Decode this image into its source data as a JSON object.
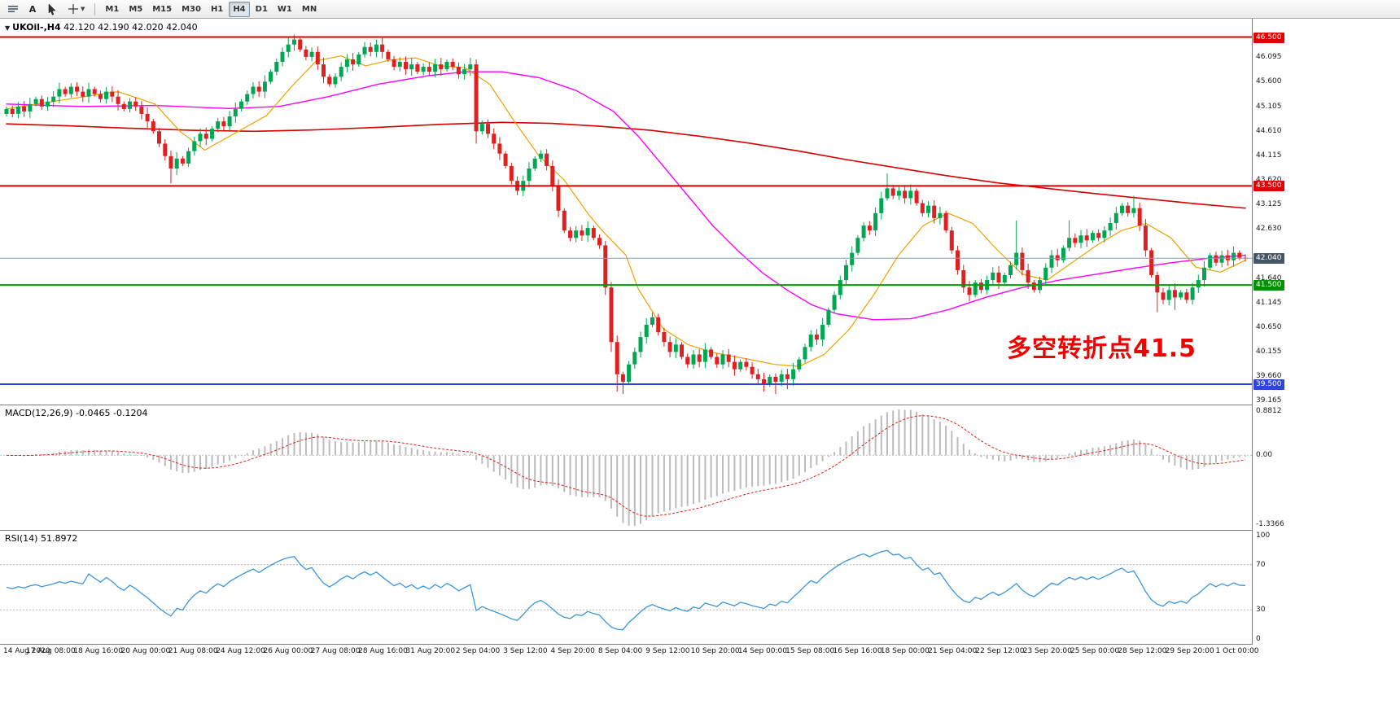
{
  "toolbar": {
    "text_tool_label": "A",
    "timeframes": [
      "M1",
      "M5",
      "M15",
      "M30",
      "H1",
      "H4",
      "D1",
      "W1",
      "MN"
    ],
    "active_timeframe": "H4"
  },
  "chart": {
    "title": "UKOil-,H4",
    "ohlc": "42.120 42.190 42.020 42.040",
    "annotation": "多空转折点41.5"
  },
  "chart_data": {
    "type": "candlestick",
    "symbol": "UKOil-",
    "period": "H4",
    "ohlc_display": {
      "open": "42.120",
      "high": "42.190",
      "low": "42.020",
      "close": "42.040"
    },
    "price_range": [
      39.09,
      46.87
    ],
    "first_open": 44.95,
    "closes": [
      45.05,
      44.95,
      45.1,
      45.0,
      45.15,
      45.25,
      45.1,
      45.2,
      45.3,
      45.45,
      45.35,
      45.5,
      45.4,
      45.3,
      45.45,
      45.35,
      45.25,
      45.4,
      45.3,
      45.15,
      45.05,
      45.2,
      45.1,
      44.95,
      44.8,
      44.6,
      44.35,
      44.1,
      43.85,
      44.05,
      43.95,
      44.2,
      44.4,
      44.55,
      44.45,
      44.65,
      44.8,
      44.7,
      44.9,
      45.05,
      45.2,
      45.35,
      45.5,
      45.4,
      45.6,
      45.8,
      46.0,
      46.2,
      46.35,
      46.45,
      46.25,
      46.1,
      46.2,
      45.95,
      45.7,
      45.55,
      45.7,
      45.9,
      46.05,
      45.95,
      46.15,
      46.3,
      46.2,
      46.35,
      46.2,
      46.05,
      45.9,
      46.0,
      45.85,
      45.95,
      45.8,
      45.9,
      45.8,
      45.95,
      45.85,
      46.0,
      45.9,
      45.75,
      45.85,
      45.95,
      44.6,
      44.75,
      44.55,
      44.35,
      44.15,
      43.9,
      43.6,
      43.4,
      43.6,
      43.85,
      44.05,
      44.15,
      43.9,
      43.5,
      43.0,
      42.6,
      42.45,
      42.6,
      42.5,
      42.65,
      42.45,
      42.3,
      41.45,
      40.35,
      39.7,
      39.55,
      39.9,
      40.15,
      40.45,
      40.7,
      40.85,
      40.55,
      40.35,
      40.15,
      40.3,
      40.05,
      39.9,
      40.1,
      39.95,
      40.2,
      40.05,
      39.9,
      40.1,
      39.95,
      39.8,
      39.95,
      39.85,
      39.7,
      39.6,
      39.5,
      39.65,
      39.55,
      39.7,
      39.6,
      39.8,
      40.0,
      40.25,
      40.5,
      40.4,
      40.7,
      41.0,
      41.3,
      41.6,
      41.9,
      42.15,
      42.45,
      42.7,
      42.6,
      42.95,
      43.25,
      43.45,
      43.3,
      43.4,
      43.25,
      43.4,
      43.15,
      42.95,
      43.1,
      42.85,
      42.95,
      42.6,
      42.2,
      41.8,
      41.45,
      41.3,
      41.55,
      41.4,
      41.6,
      41.75,
      41.55,
      41.7,
      41.9,
      42.15,
      41.8,
      41.55,
      41.4,
      41.6,
      41.85,
      42.1,
      42.0,
      42.25,
      42.45,
      42.35,
      42.5,
      42.4,
      42.55,
      42.45,
      42.6,
      42.75,
      42.95,
      43.1,
      42.95,
      43.05,
      42.7,
      42.2,
      41.7,
      41.35,
      41.2,
      41.4,
      41.25,
      41.35,
      41.2,
      41.45,
      41.6,
      41.85,
      42.1,
      41.95,
      42.1,
      42.0,
      42.15,
      42.05,
      42.04
    ],
    "wick_overrides": {
      "28": {
        "l": 43.55
      },
      "48": {
        "h": 46.5
      },
      "49": {
        "h": 46.55
      },
      "50": {
        "h": 46.48
      },
      "61": {
        "h": 46.4
      },
      "63": {
        "h": 46.45
      },
      "80": {
        "h": 46.05,
        "l": 44.35
      },
      "102": {
        "l": 41.3
      },
      "103": {
        "l": 40.15
      },
      "104": {
        "l": 39.35
      },
      "105": {
        "l": 39.3
      },
      "110": {
        "h": 40.95
      },
      "129": {
        "l": 39.35
      },
      "131": {
        "l": 39.3
      },
      "133": {
        "l": 39.4
      },
      "150": {
        "h": 43.75
      },
      "172": {
        "h": 42.8
      },
      "181": {
        "h": 42.8
      },
      "192": {
        "h": 43.3
      },
      "196": {
        "l": 40.95
      },
      "199": {
        "l": 41.0
      }
    },
    "colors": {
      "up": "#00a651",
      "down": "#dd2020",
      "up_border": "#00满73a",
      "down_border": "#b01010"
    },
    "h_lines": [
      {
        "name": "resistance-line-46-500",
        "price": 46.5,
        "color": "#e00000",
        "width": 2
      },
      {
        "name": "resistance-line-43-500",
        "price": 43.5,
        "color": "#e00000",
        "width": 2
      },
      {
        "name": "pivot-line-41-500",
        "price": 41.5,
        "color": "#00a000",
        "width": 2
      },
      {
        "name": "support-line-39-500",
        "price": 39.5,
        "color": "#2f45d4",
        "width": 2
      }
    ],
    "current_price": 42.04,
    "price_ticks": [
      "46.095",
      "45.600",
      "45.105",
      "44.610",
      "44.115",
      "43.620",
      "43.125",
      "42.630",
      "41.640",
      "41.145",
      "40.650",
      "40.155",
      "39.660",
      "39.165"
    ],
    "price_badges": [
      {
        "label": "46.500",
        "price": 46.5,
        "color": "#e00000"
      },
      {
        "label": "43.500",
        "price": 43.5,
        "color": "#e00000"
      },
      {
        "label": "42.040",
        "price": 42.04,
        "color": "#445566"
      },
      {
        "label": "41.500",
        "price": 41.5,
        "color": "#009000"
      },
      {
        "label": "39.500",
        "price": 39.5,
        "color": "#2f45d4"
      }
    ],
    "ma_lines": [
      {
        "name": "ma-slow-red",
        "color": "#d60000",
        "width": 1.6,
        "points": [
          [
            0,
            44.75
          ],
          [
            0.05,
            44.71
          ],
          [
            0.1,
            44.66
          ],
          [
            0.15,
            44.62
          ],
          [
            0.2,
            44.6
          ],
          [
            0.25,
            44.63
          ],
          [
            0.3,
            44.68
          ],
          [
            0.35,
            44.74
          ],
          [
            0.4,
            44.78
          ],
          [
            0.44,
            44.76
          ],
          [
            0.48,
            44.7
          ],
          [
            0.52,
            44.62
          ],
          [
            0.56,
            44.5
          ],
          [
            0.6,
            44.36
          ],
          [
            0.64,
            44.2
          ],
          [
            0.68,
            44.02
          ],
          [
            0.72,
            43.86
          ],
          [
            0.76,
            43.7
          ],
          [
            0.8,
            43.56
          ],
          [
            0.84,
            43.45
          ],
          [
            0.88,
            43.34
          ],
          [
            0.92,
            43.24
          ],
          [
            0.96,
            43.14
          ],
          [
            1,
            43.05
          ]
        ]
      },
      {
        "name": "ma-mid-magenta",
        "color": "#ff00ff",
        "width": 1.4,
        "points": [
          [
            0,
            45.15
          ],
          [
            0.06,
            45.1
          ],
          [
            0.12,
            45.12
          ],
          [
            0.18,
            45.06
          ],
          [
            0.22,
            45.1
          ],
          [
            0.26,
            45.3
          ],
          [
            0.3,
            45.55
          ],
          [
            0.34,
            45.72
          ],
          [
            0.37,
            45.8
          ],
          [
            0.4,
            45.8
          ],
          [
            0.43,
            45.68
          ],
          [
            0.46,
            45.42
          ],
          [
            0.49,
            45.0
          ],
          [
            0.51,
            44.5
          ],
          [
            0.53,
            43.9
          ],
          [
            0.55,
            43.3
          ],
          [
            0.57,
            42.7
          ],
          [
            0.59,
            42.2
          ],
          [
            0.61,
            41.75
          ],
          [
            0.63,
            41.4
          ],
          [
            0.65,
            41.1
          ],
          [
            0.67,
            40.92
          ],
          [
            0.7,
            40.8
          ],
          [
            0.73,
            40.82
          ],
          [
            0.76,
            41.0
          ],
          [
            0.79,
            41.25
          ],
          [
            0.82,
            41.45
          ],
          [
            0.85,
            41.6
          ],
          [
            0.88,
            41.72
          ],
          [
            0.91,
            41.84
          ],
          [
            0.94,
            41.95
          ],
          [
            0.97,
            42.04
          ],
          [
            1,
            42.1
          ]
        ]
      },
      {
        "name": "ma-fast-orange",
        "color": "#efa000",
        "width": 1.2,
        "points": [
          [
            0,
            45.05
          ],
          [
            0.05,
            45.25
          ],
          [
            0.09,
            45.4
          ],
          [
            0.12,
            45.15
          ],
          [
            0.14,
            44.6
          ],
          [
            0.16,
            44.22
          ],
          [
            0.18,
            44.5
          ],
          [
            0.21,
            44.92
          ],
          [
            0.23,
            45.5
          ],
          [
            0.25,
            46.02
          ],
          [
            0.27,
            46.12
          ],
          [
            0.29,
            45.92
          ],
          [
            0.31,
            46.04
          ],
          [
            0.33,
            46.08
          ],
          [
            0.35,
            45.92
          ],
          [
            0.37,
            45.88
          ],
          [
            0.39,
            45.55
          ],
          [
            0.41,
            44.8
          ],
          [
            0.43,
            44.1
          ],
          [
            0.45,
            43.62
          ],
          [
            0.47,
            42.92
          ],
          [
            0.48,
            42.62
          ],
          [
            0.5,
            42.1
          ],
          [
            0.51,
            41.42
          ],
          [
            0.53,
            40.62
          ],
          [
            0.55,
            40.3
          ],
          [
            0.57,
            40.14
          ],
          [
            0.6,
            40.0
          ],
          [
            0.62,
            39.9
          ],
          [
            0.64,
            39.86
          ],
          [
            0.66,
            40.1
          ],
          [
            0.68,
            40.6
          ],
          [
            0.7,
            41.3
          ],
          [
            0.72,
            42.1
          ],
          [
            0.74,
            42.7
          ],
          [
            0.76,
            42.95
          ],
          [
            0.78,
            42.74
          ],
          [
            0.8,
            42.2
          ],
          [
            0.82,
            41.72
          ],
          [
            0.84,
            41.6
          ],
          [
            0.86,
            41.95
          ],
          [
            0.88,
            42.3
          ],
          [
            0.9,
            42.6
          ],
          [
            0.92,
            42.74
          ],
          [
            0.94,
            42.45
          ],
          [
            0.96,
            41.86
          ],
          [
            0.98,
            41.76
          ],
          [
            1,
            42.0
          ]
        ]
      }
    ],
    "x_labels": [
      "14 Aug 2020",
      "17 Aug 08:00",
      "18 Aug 16:00",
      "20 Aug 00:00",
      "21 Aug 08:00",
      "24 Aug 12:00",
      "26 Aug 00:00",
      "27 Aug 08:00",
      "28 Aug 16:00",
      "31 Aug 20:00",
      "2 Sep 04:00",
      "3 Sep 12:00",
      "4 Sep 20:00",
      "8 Sep 04:00",
      "9 Sep 12:00",
      "10 Sep 20:00",
      "14 Sep 00:00",
      "15 Sep 08:00",
      "16 Sep 16:00",
      "18 Sep 00:00",
      "21 Sep 04:00",
      "22 Sep 12:00",
      "23 Sep 20:00",
      "25 Sep 00:00",
      "28 Sep 12:00",
      "29 Sep 20:00",
      "1 Oct 00:00"
    ],
    "macd": {
      "label": "MACD(12,26,9) -0.0465 -0.1204",
      "params": [
        12,
        26,
        9
      ],
      "main_value": -0.0465,
      "signal_value": -0.1204,
      "axis_ticks": [
        "0.8812",
        "0.00",
        "-1.3366"
      ],
      "ylim": [
        -1.3366,
        0.8812
      ],
      "histogram_color": "#bcbcbc",
      "signal_color": "#e02020"
    },
    "rsi": {
      "label": "RSI(14) 51.8972",
      "period": 14,
      "value": 51.8972,
      "axis_ticks": [
        "100",
        "70",
        "30",
        "0"
      ],
      "levels": [
        70,
        30
      ],
      "ylim": [
        0,
        100
      ],
      "line_color": "#3a96dd"
    }
  }
}
